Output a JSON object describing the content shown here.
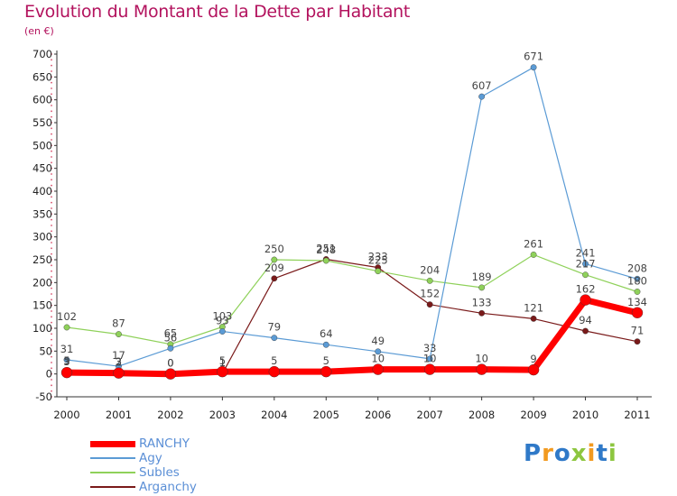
{
  "header": {
    "title": "Evolution du Montant de la Dette par Habitant",
    "unit": "(en €)"
  },
  "logo": {
    "text": "Proxiti",
    "letters": [
      {
        "ch": "P",
        "color": "#2f79c8"
      },
      {
        "ch": "r",
        "color": "#f29a1f"
      },
      {
        "ch": "o",
        "color": "#2f79c8"
      },
      {
        "ch": "x",
        "color": "#8dc63f"
      },
      {
        "ch": "i",
        "color": "#f29a1f"
      },
      {
        "ch": "t",
        "color": "#2f79c8"
      },
      {
        "ch": "i",
        "color": "#8dc63f"
      }
    ]
  },
  "chart_data": {
    "type": "line",
    "title": "Evolution du Montant de la Dette par Habitant",
    "xlabel": "",
    "ylabel": "(en €)",
    "x": [
      "2000",
      "2001",
      "2002",
      "2003",
      "2004",
      "2005",
      "2006",
      "2007",
      "2008",
      "2009",
      "2010",
      "2011"
    ],
    "ylim": [
      -50,
      700
    ],
    "yticks": [
      -50,
      0,
      50,
      100,
      150,
      200,
      250,
      300,
      350,
      400,
      450,
      500,
      550,
      600,
      650,
      700
    ],
    "grid": false,
    "legend": "bottom-left",
    "series": [
      {
        "name": "RANCHY",
        "color": "#ff0000",
        "values": [
          3,
          2,
          0,
          5,
          5,
          5,
          10,
          10,
          10,
          9,
          162,
          134
        ],
        "labels": [
          "3",
          "2",
          "0",
          "5",
          "5",
          "5",
          "10",
          "10",
          "10",
          "9",
          "162",
          "134"
        ]
      },
      {
        "name": "Agy",
        "color": "#5b9bd5",
        "values": [
          31,
          17,
          56,
          93,
          79,
          64,
          49,
          33,
          607,
          671,
          241,
          208
        ],
        "labels": [
          "31",
          "17",
          "56",
          "93",
          "79",
          "64",
          "49",
          "33",
          "607",
          "671",
          "241",
          "208"
        ]
      },
      {
        "name": "Subles",
        "color": "#8fd15a",
        "values": [
          102,
          87,
          65,
          103,
          250,
          248,
          225,
          204,
          189,
          261,
          217,
          180
        ],
        "labels": [
          "102",
          "87",
          "65",
          "103",
          "250",
          "248",
          "225",
          "204",
          "189",
          "261",
          "217",
          "180"
        ]
      },
      {
        "name": "Arganchy",
        "color": "#7a1a1a",
        "values": [
          5,
          3,
          0,
          1,
          209,
          251,
          233,
          152,
          133,
          121,
          94,
          71
        ],
        "labels": [
          "5",
          "3",
          "0",
          "1",
          "209",
          "251",
          "233",
          "152",
          "133",
          "121",
          "94",
          "71"
        ]
      }
    ]
  }
}
